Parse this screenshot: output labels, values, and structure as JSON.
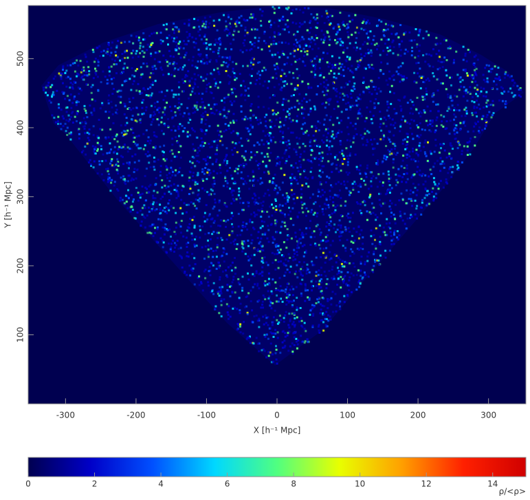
{
  "chart_data": {
    "type": "density-map",
    "x_label": "X [h⁻¹ Mpc]",
    "y_label": "Y [h⁻¹ Mpc]",
    "xlim": [
      -353,
      353
    ],
    "xticks": [
      -300,
      -200,
      -100,
      0,
      100,
      200,
      300
    ],
    "ylim": [
      0,
      577
    ],
    "yticks": [
      100,
      200,
      300,
      400,
      500
    ],
    "colorbar": {
      "label": "ρ/<ρ>",
      "lim": [
        0,
        15
      ],
      "ticks": [
        0,
        2,
        4,
        6,
        8,
        10,
        12,
        14
      ],
      "colormap": [
        "#000050",
        "#0000c8",
        "#0050ff",
        "#00d8ff",
        "#50ff80",
        "#e8ff00",
        "#ffa000",
        "#ff2000",
        "#d00000"
      ]
    }
  }
}
